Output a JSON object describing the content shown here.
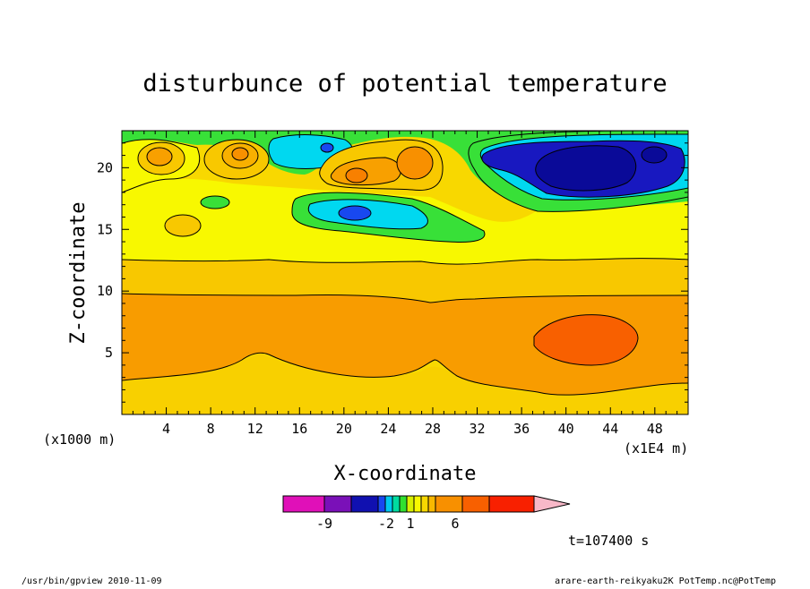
{
  "chart_data": {
    "type": "heatmap",
    "title": "disturbunce of potential temperature",
    "xlabel": "X-coordinate",
    "ylabel": "Z-coordinate",
    "x_unit_left": "(x1000 m)",
    "x_unit_right": "(x1E4 m)",
    "x_ticks": [
      4,
      8,
      12,
      16,
      20,
      24,
      28,
      32,
      36,
      40,
      44,
      48
    ],
    "y_ticks": [
      5,
      10,
      15,
      20
    ],
    "xlim": [
      0,
      51
    ],
    "ylim": [
      0,
      23
    ],
    "colorbar_labels": [
      -9,
      -2,
      1,
      6
    ],
    "colorbar_colors": [
      "#e010b8",
      "#7a10b8",
      "#1010b0",
      "#1848f0",
      "#00c8f0",
      "#00dca0",
      "#30e030",
      "#d8f000",
      "#f8f800",
      "#f8d800",
      "#f8b800",
      "#f89000",
      "#f86000",
      "#f82000",
      "#f87878",
      "#f8b8c8"
    ],
    "time_label": "t=107400 s",
    "footer_left": "/usr/bin/gpview   2010-11-09",
    "footer_right": "arare-earth-reikyaku2K_PotTemp.nc@PotTemp"
  }
}
